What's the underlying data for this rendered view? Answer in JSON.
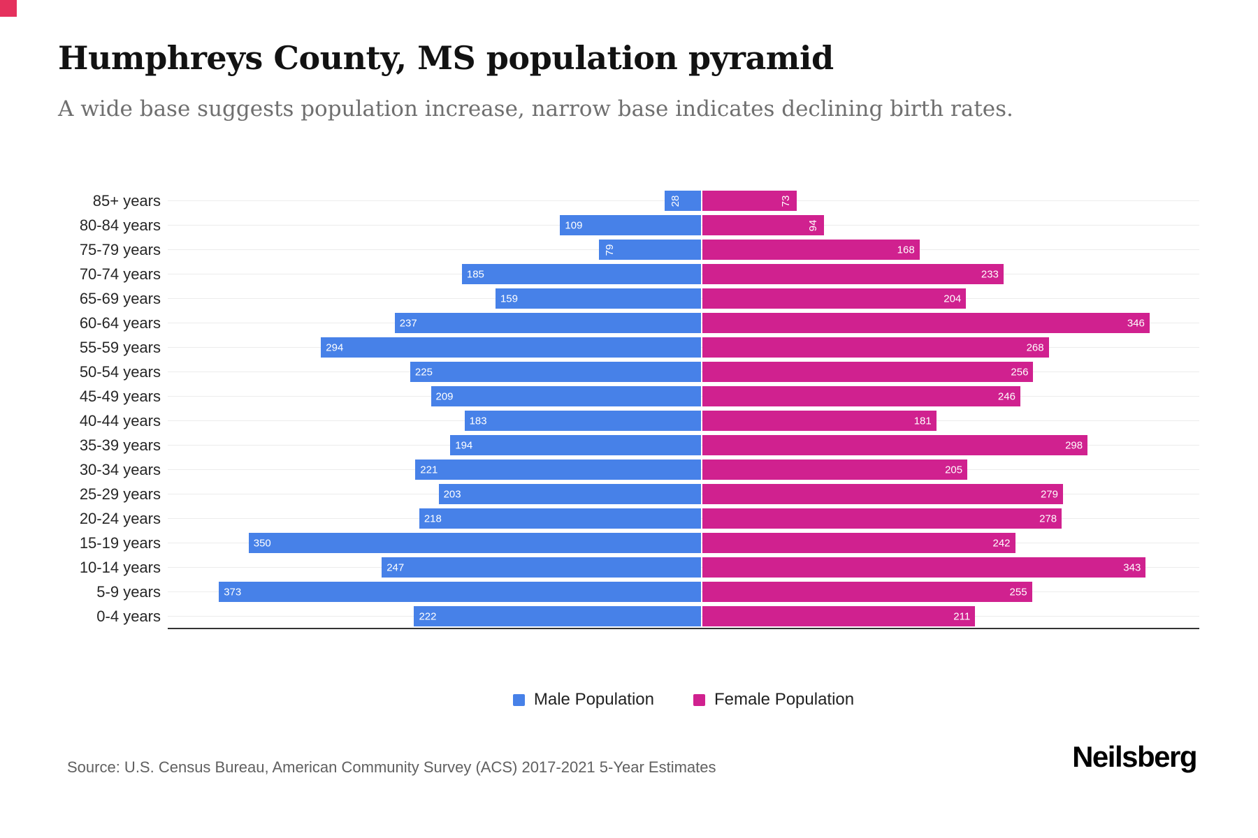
{
  "branding": {
    "corner_color": "#e5315d",
    "logo_text": "Neilsberg"
  },
  "header": {
    "title": "Humphreys County, MS population pyramid",
    "subtitle": "A wide base suggests population increase, narrow base indicates declining birth rates."
  },
  "chart_data": {
    "type": "bar",
    "variant": "population_pyramid",
    "orientation": "horizontal",
    "title": "Humphreys County, MS population pyramid",
    "categories": [
      "85+ years",
      "80-84 years",
      "75-79 years",
      "70-74 years",
      "65-69 years",
      "60-64 years",
      "55-59 years",
      "50-54 years",
      "45-49 years",
      "40-44 years",
      "35-39 years",
      "30-34 years",
      "25-29 years",
      "20-24 years",
      "15-19 years",
      "10-14 years",
      "5-9 years",
      "0-4 years"
    ],
    "series": [
      {
        "name": "Male Population",
        "color": "#4781e8",
        "values": [
          28,
          109,
          79,
          185,
          159,
          237,
          294,
          225,
          209,
          183,
          194,
          221,
          203,
          218,
          350,
          247,
          373,
          222
        ]
      },
      {
        "name": "Female Population",
        "color": "#d0218f",
        "values": [
          73,
          94,
          168,
          233,
          204,
          346,
          268,
          256,
          246,
          181,
          298,
          205,
          279,
          278,
          242,
          343,
          255,
          211
        ]
      }
    ],
    "xlim": [
      0,
      385
    ],
    "value_labels": "inside outer end, white; values under 100 rotated vertically",
    "grid": "light horizontal line per row",
    "legend_position": "bottom-center"
  },
  "footer": {
    "source": "Source: U.S. Census Bureau, American Community Survey (ACS) 2017-2021 5-Year Estimates",
    "brand": "Neilsberg"
  }
}
